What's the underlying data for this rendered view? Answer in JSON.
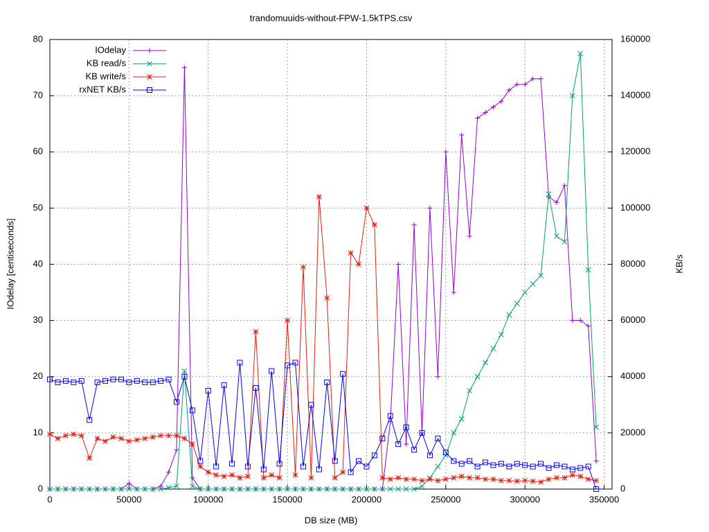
{
  "chart_data": {
    "type": "line",
    "title": "trandomuuids-without-FPW-1.5kTPS.csv",
    "x_label": "DB size (MB)",
    "y_label": "IOdelay [centiseconds]",
    "y2_label": "KB/s",
    "x": [
      0,
      5000,
      10000,
      15000,
      20000,
      25000,
      30000,
      35000,
      40000,
      45000,
      50000,
      55000,
      60000,
      65000,
      70000,
      75000,
      80000,
      85000,
      90000,
      95000,
      100000,
      105000,
      110000,
      115000,
      120000,
      125000,
      130000,
      135000,
      140000,
      145000,
      150000,
      155000,
      160000,
      165000,
      170000,
      175000,
      180000,
      185000,
      190000,
      195000,
      200000,
      205000,
      210000,
      215000,
      220000,
      225000,
      230000,
      235000,
      240000,
      245000,
      250000,
      255000,
      260000,
      265000,
      270000,
      275000,
      280000,
      285000,
      290000,
      295000,
      300000,
      305000,
      310000,
      315000,
      320000,
      325000,
      330000,
      335000,
      340000,
      345000
    ],
    "xlim": [
      0,
      355000
    ],
    "xticks": [
      0,
      50000,
      100000,
      150000,
      200000,
      250000,
      300000,
      350000
    ],
    "ylim": [
      0,
      80
    ],
    "yticks": [
      0,
      10,
      20,
      30,
      40,
      50,
      60,
      70,
      80
    ],
    "y2lim": [
      0,
      160000
    ],
    "y2ticks": [
      0,
      20000,
      40000,
      60000,
      80000,
      100000,
      120000,
      140000,
      160000
    ],
    "grid": true,
    "legend": "top-left",
    "series": [
      {
        "name": "IOdelay",
        "color": "#9400d3",
        "marker": "plus",
        "values": [
          0,
          0,
          0,
          0,
          0,
          0,
          0,
          0,
          0,
          0,
          1,
          0,
          0,
          0,
          0.5,
          3,
          7,
          75,
          2,
          0,
          0,
          0,
          0,
          0,
          0,
          0,
          0,
          0,
          0,
          0,
          0,
          0,
          0,
          0,
          0,
          0,
          0,
          0,
          0,
          0,
          0,
          0,
          0,
          12,
          40,
          8,
          47,
          10,
          50,
          20,
          60,
          35,
          63,
          45,
          66,
          67,
          68,
          69,
          71,
          72,
          72,
          73,
          73,
          52,
          51,
          54,
          30,
          30,
          29,
          5
        ]
      },
      {
        "name": "KB read/s",
        "color": "#009e73",
        "marker": "cross",
        "axis": "y2",
        "values": [
          0,
          0,
          0,
          0,
          0,
          0,
          0,
          0,
          0,
          0,
          0,
          0,
          0,
          0,
          0,
          500,
          1000,
          42000,
          1000,
          0,
          0,
          0,
          0,
          0,
          0,
          0,
          0,
          0,
          0,
          0,
          0,
          0,
          0,
          0,
          0,
          0,
          0,
          0,
          0,
          0,
          0,
          0,
          0,
          0,
          0,
          0,
          0,
          1000,
          4000,
          8000,
          12000,
          20000,
          25000,
          35000,
          40000,
          45000,
          50000,
          55000,
          62000,
          66000,
          70000,
          73000,
          76000,
          105000,
          90000,
          88000,
          140000,
          155000,
          78000,
          22000
        ]
      },
      {
        "name": "KB write/s",
        "color": "#e51e10",
        "marker": "star",
        "axis": "y2",
        "values": [
          19500,
          18000,
          19000,
          19500,
          19000,
          11000,
          18000,
          17000,
          18500,
          18000,
          17000,
          17500,
          18000,
          18500,
          19000,
          19000,
          19000,
          18000,
          16000,
          8000,
          6000,
          5000,
          4500,
          5000,
          4000,
          4500,
          56000,
          4000,
          5000,
          4000,
          60000,
          5000,
          79000,
          4000,
          104000,
          68000,
          4000,
          6000,
          84000,
          80000,
          100000,
          94000,
          4000,
          3500,
          4000,
          3500,
          3500,
          3000,
          3500,
          3000,
          3500,
          4000,
          4500,
          4000,
          4000,
          3500,
          3500,
          3000,
          3000,
          2800,
          3000,
          2800,
          2500,
          3500,
          4000,
          4000,
          5000,
          4500,
          3500,
          3000
        ]
      },
      {
        "name": "rxNET KB/s",
        "color": "#0000ff",
        "marker": "square",
        "axis": "y2",
        "values": [
          39000,
          38000,
          38500,
          38000,
          38500,
          24600,
          38000,
          38500,
          39000,
          39000,
          38000,
          38500,
          38000,
          38000,
          38500,
          39000,
          31000,
          40000,
          28000,
          10000,
          35000,
          8000,
          37000,
          9000,
          45000,
          8000,
          36000,
          7000,
          42000,
          9000,
          44000,
          45000,
          8000,
          30000,
          7000,
          38000,
          10000,
          41000,
          6000,
          10000,
          8000,
          12000,
          18000,
          26000,
          16000,
          22000,
          14000,
          20000,
          12000,
          18000,
          13000,
          10000,
          9000,
          10000,
          8000,
          9500,
          8500,
          9000,
          8000,
          9000,
          8500,
          8000,
          9000,
          7500,
          8500,
          8000,
          7000,
          7500,
          8000,
          0
        ]
      }
    ]
  }
}
